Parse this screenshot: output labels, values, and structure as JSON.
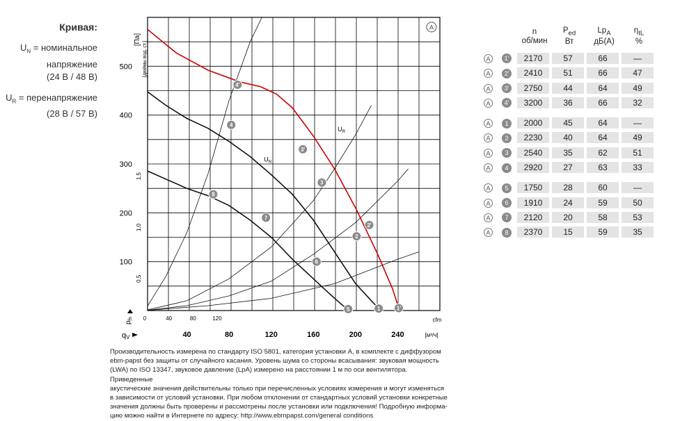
{
  "legend": {
    "title": "Кривая:",
    "un_sym": "U",
    "un_sub": "N",
    "un_text1": " = номинальное",
    "un_text2": "напряжение",
    "un_text3": "(24 В / 48 В)",
    "ur_sym": "U",
    "ur_sub": "R",
    "ur_text1": " = перенапряжение",
    "ur_text2": "(28 В / 57 В)"
  },
  "table": {
    "headers": [
      {
        "l1": "n",
        "l2": "об/мин"
      },
      {
        "l1": "P",
        "sub": "ed",
        "l2": "Вт"
      },
      {
        "l1": "Lp",
        "sub": "A",
        "l2": "дБ(A)"
      },
      {
        "l1": "η",
        "sub": "tL",
        "l2": "%"
      }
    ],
    "groups": [
      [
        {
          "mode": "A",
          "pt": "1'",
          "n": "2170",
          "p": "57",
          "lp": "66",
          "eta": "—"
        },
        {
          "mode": "A",
          "pt": "2'",
          "n": "2410",
          "p": "51",
          "lp": "66",
          "eta": "47"
        },
        {
          "mode": "A",
          "pt": "3'",
          "n": "2750",
          "p": "44",
          "lp": "64",
          "eta": "49"
        },
        {
          "mode": "A",
          "pt": "4'",
          "n": "3200",
          "p": "36",
          "lp": "66",
          "eta": "32"
        }
      ],
      [
        {
          "mode": "A",
          "pt": "1",
          "n": "2000",
          "p": "45",
          "lp": "64",
          "eta": "—"
        },
        {
          "mode": "A",
          "pt": "2",
          "n": "2230",
          "p": "40",
          "lp": "64",
          "eta": "49"
        },
        {
          "mode": "A",
          "pt": "3",
          "n": "2540",
          "p": "35",
          "lp": "62",
          "eta": "51"
        },
        {
          "mode": "A",
          "pt": "4",
          "n": "2920",
          "p": "27",
          "lp": "63",
          "eta": "33"
        }
      ],
      [
        {
          "mode": "A",
          "pt": "5",
          "n": "1750",
          "p": "28",
          "lp": "60",
          "eta": "—"
        },
        {
          "mode": "A",
          "pt": "6",
          "n": "1910",
          "p": "24",
          "lp": "59",
          "eta": "50"
        },
        {
          "mode": "A",
          "pt": "7",
          "n": "2120",
          "p": "20",
          "lp": "58",
          "eta": "53"
        },
        {
          "mode": "A",
          "pt": "8",
          "n": "2370",
          "p": "15",
          "lp": "59",
          "eta": "35"
        }
      ]
    ]
  },
  "footnote": [
    "Производительность измерена по стандарту ISO 5801, категория установки A, в комплекте с диффузором",
    "ebm-papst без защиты от случайного касания. Уровень шума со стороны всасывания: звуковая мощность",
    "(LWA) по ISO 13347, звуковое давление (LpA) измерено на расстоянии 1 м по оси вентилятора. Приведенные",
    "акустические значения действительны только при перечисленных условиях измерения и могут изменяться",
    "в зависимости от условий установки. При любом отклонении от стандартных условий установки конкретные",
    "значения должны быть проверены и рассмотрены после установки или подключения! Подробную информа-",
    "цию можно найти в Интернете по адресу: http://www.ebmpapst.com/general conditions"
  ],
  "chart_data": {
    "type": "line",
    "mode_badge": "A",
    "yunit": "[Па]",
    "yunit2": "[дюймы вод. ст.]",
    "ylabel": "p",
    "ylabel_sub": "fs",
    "xlabel": "q",
    "xlabel_sub": "V",
    "xunit": "[м³/ч]",
    "xunit2": "cfm",
    "xlim": [
      0,
      280
    ],
    "ylim": [
      0,
      600
    ],
    "grid": true,
    "x_ticks_m3h": [
      40,
      80,
      120,
      160,
      200,
      240
    ],
    "y_ticks_pa": [
      100,
      200,
      300,
      400,
      500
    ],
    "x_ticks_cfm": [
      0,
      40,
      80,
      120
    ],
    "y_ticks_inwg": [
      "0,5",
      "1,0",
      "1,5"
    ],
    "curve_labels": [
      {
        "sym": "U",
        "sub": "N",
        "x": 113,
        "y": 305
      },
      {
        "sym": "U",
        "sub": "R",
        "x": 183,
        "y": 367
      }
    ],
    "series": [
      {
        "name": "1'-4'",
        "color": "#cc0000",
        "x": [
          0,
          30,
          60,
          90,
          110,
          125,
          140,
          160,
          180,
          200,
          220,
          235,
          241
        ],
        "y": [
          580,
          527,
          492,
          468,
          458,
          443,
          415,
          357,
          290,
          210,
          120,
          45,
          5
        ]
      },
      {
        "name": "1-4",
        "color": "#111111",
        "x": [
          0,
          20,
          40,
          60,
          80,
          100,
          120,
          140,
          160,
          180,
          200,
          215,
          222
        ],
        "y": [
          452,
          420,
          393,
          373,
          346,
          315,
          278,
          238,
          185,
          120,
          55,
          20,
          4
        ]
      },
      {
        "name": "5-8",
        "color": "#111111",
        "x": [
          0,
          20,
          40,
          60,
          80,
          100,
          120,
          140,
          160,
          175,
          188,
          194
        ],
        "y": [
          288,
          269,
          250,
          235,
          215,
          185,
          150,
          105,
          65,
          35,
          10,
          3
        ]
      },
      {
        "name": "R1",
        "color": "#111111",
        "x": [
          0,
          20,
          40,
          60,
          80,
          100,
          120
        ],
        "y": [
          0,
          70,
          160,
          280,
          430,
          550,
          640
        ]
      },
      {
        "name": "R2",
        "color": "#111111",
        "x": [
          0,
          40,
          80,
          120,
          160,
          180,
          200,
          215
        ],
        "y": [
          0,
          20,
          65,
          130,
          225,
          290,
          360,
          420
        ]
      },
      {
        "name": "R3",
        "color": "#111111",
        "x": [
          0,
          40,
          80,
          120,
          160,
          200,
          240,
          250
        ],
        "y": [
          0,
          10,
          30,
          60,
          115,
          180,
          265,
          290
        ]
      },
      {
        "name": "R4",
        "color": "#111111",
        "x": [
          0,
          60,
          120,
          180,
          240,
          260
        ],
        "y": [
          0,
          10,
          25,
          55,
          105,
          120
        ]
      }
    ],
    "points": [
      {
        "label": "1'",
        "x": 241,
        "y": 5,
        "color": "#cc0000"
      },
      {
        "label": "2'",
        "x": 213,
        "y": 175,
        "color": "#cc0000"
      },
      {
        "label": "3'",
        "x": 150,
        "y": 330,
        "color": "#cc0000"
      },
      {
        "label": "4'",
        "x": 88,
        "y": 462,
        "color": "#cc0000"
      },
      {
        "label": "1",
        "x": 222,
        "y": 4,
        "color": "#111111"
      },
      {
        "label": "2",
        "x": 201,
        "y": 152,
        "color": "#111111"
      },
      {
        "label": "3",
        "x": 168,
        "y": 262,
        "color": "#111111"
      },
      {
        "label": "4",
        "x": 82,
        "y": 380,
        "color": "#111111"
      },
      {
        "label": "5",
        "x": 193,
        "y": 3,
        "color": "#111111"
      },
      {
        "label": "6",
        "x": 163,
        "y": 100,
        "color": "#111111"
      },
      {
        "label": "7",
        "x": 115,
        "y": 190,
        "color": "#111111"
      },
      {
        "label": "8",
        "x": 65,
        "y": 238,
        "color": "#111111"
      }
    ]
  }
}
